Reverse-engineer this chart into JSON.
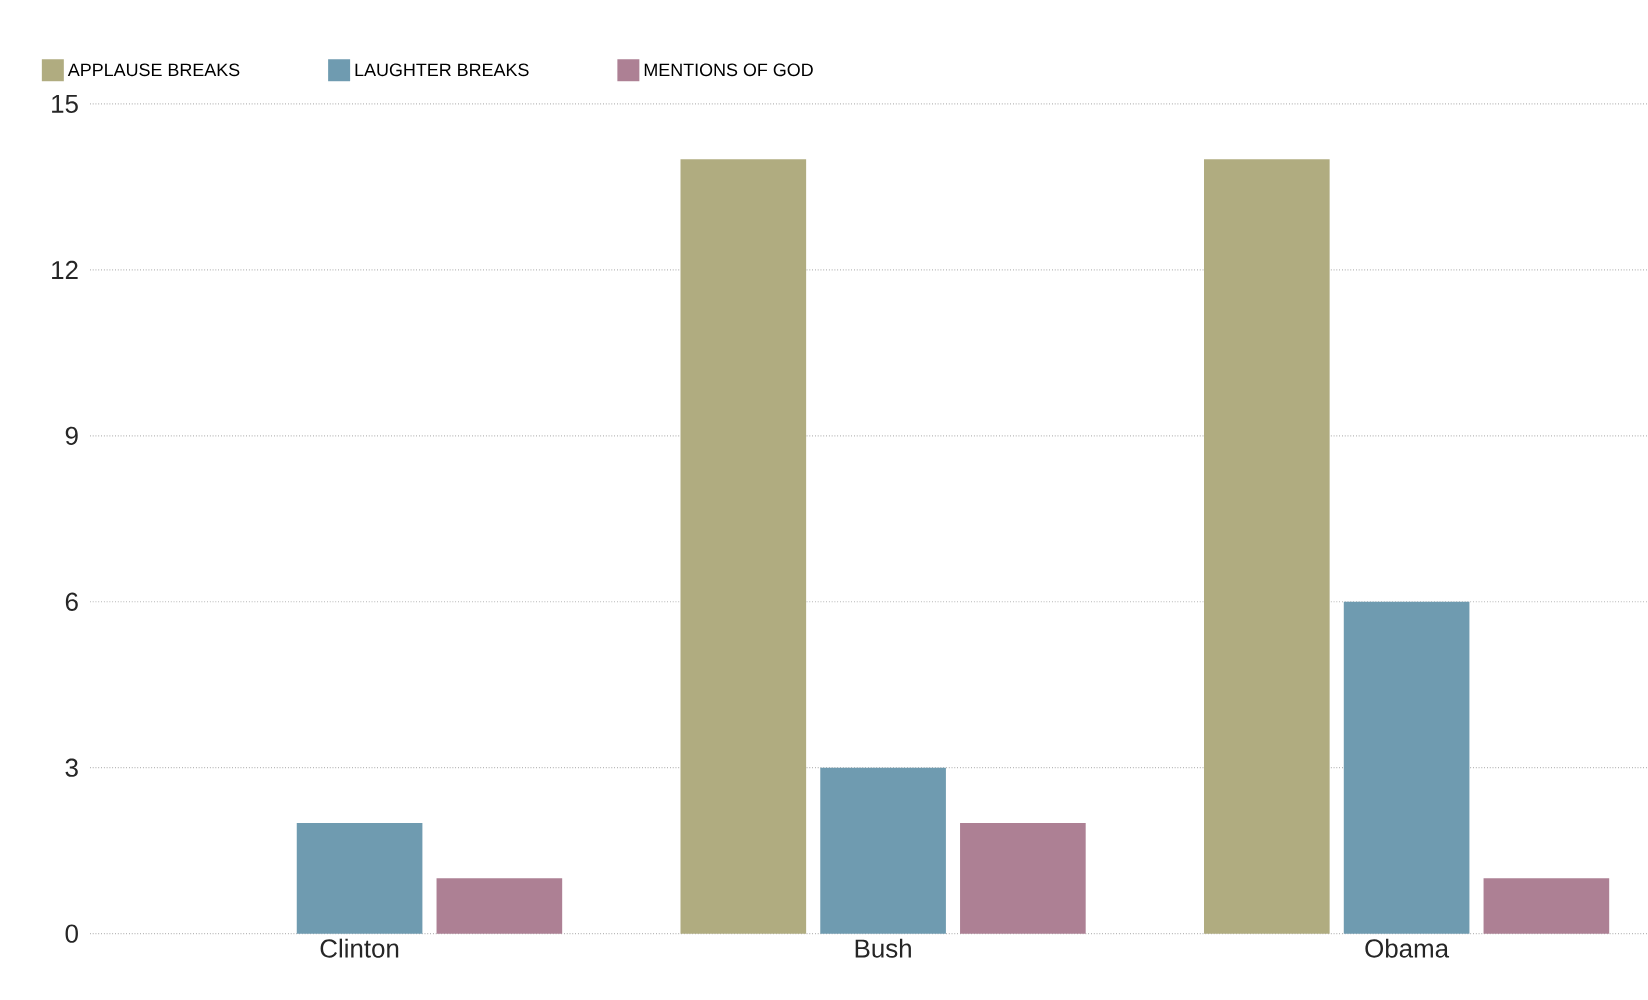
{
  "chart_data": {
    "type": "bar",
    "categories": [
      "Clinton",
      "Bush",
      "Obama"
    ],
    "series": [
      {
        "name": "APPLAUSE BREAKS",
        "color": "#b0ac80",
        "values": [
          0,
          14,
          14
        ]
      },
      {
        "name": "LAUGHTER BREAKS",
        "color": "#6f9bb0",
        "values": [
          2,
          3,
          6
        ]
      },
      {
        "name": "MENTIONS OF GOD",
        "color": "#ad8094",
        "values": [
          1,
          2,
          1
        ]
      }
    ],
    "ylim": [
      0,
      15
    ],
    "yticks": [
      0,
      3,
      6,
      9,
      12,
      15
    ],
    "grid": "y",
    "legend": "top left"
  }
}
